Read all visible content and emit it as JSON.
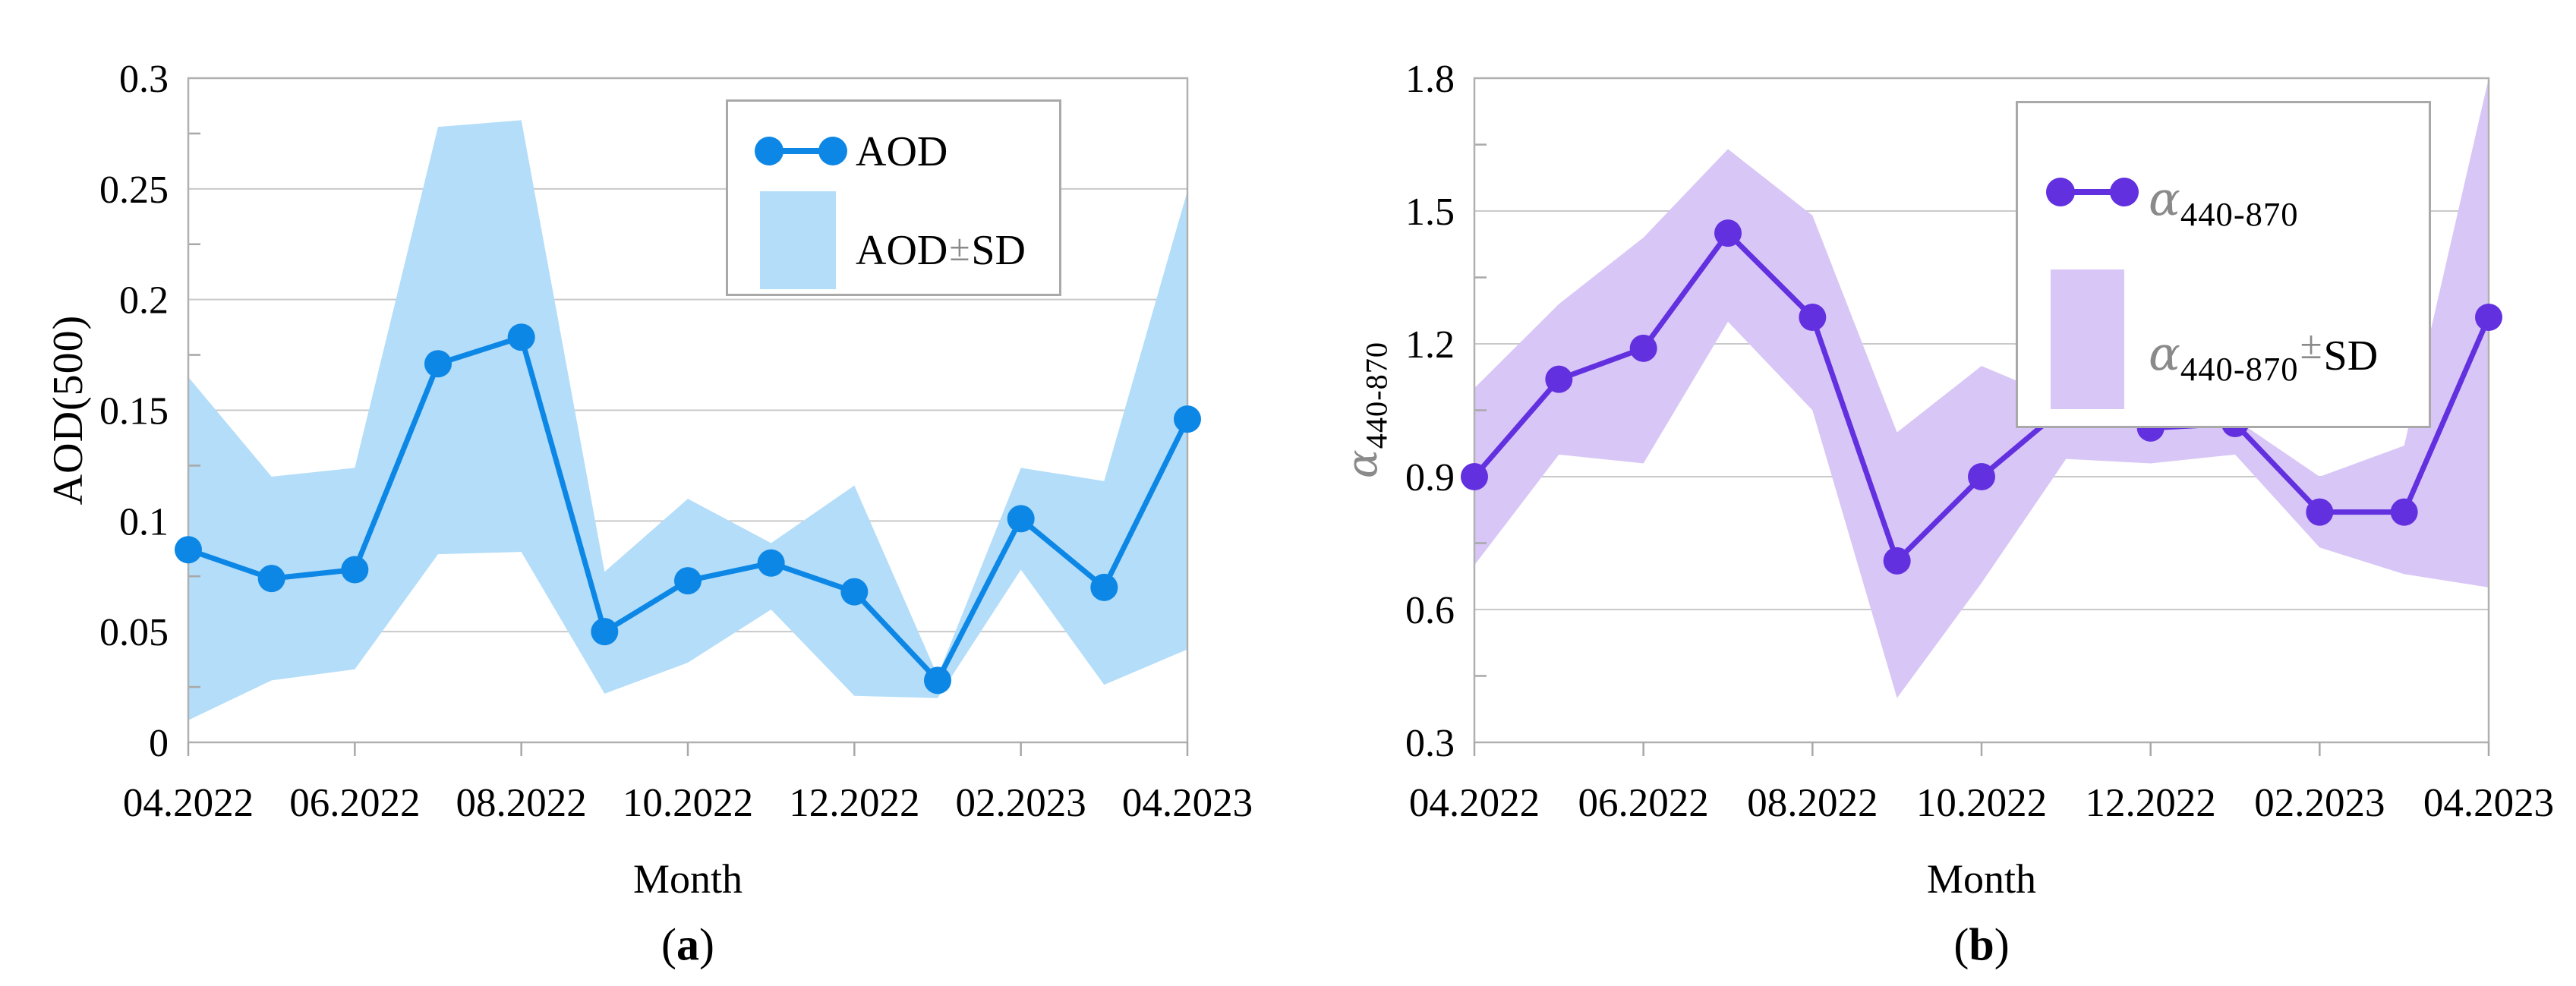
{
  "style": {
    "background": "#ffffff",
    "text_color": "#000000",
    "grid_color": "#c9c9c9",
    "axis_color": "#b0b0b0",
    "tick_color": "#a8a8a8",
    "muted_color": "#8a8a8a",
    "panel_a_line": "#0d87e6",
    "panel_a_band": "#b3ddf9",
    "panel_b_line": "#6330e0",
    "panel_b_band": "#d8c7f6"
  },
  "chart_data": [
    {
      "type": "line",
      "panel": "a",
      "caption": {
        "open": "(",
        "letter": "a",
        "close": ")"
      },
      "xlabel": "Month",
      "ylabel": "AOD(500)",
      "x": [
        "04.2022",
        "05.2022",
        "06.2022",
        "07.2022",
        "08.2022",
        "09.2022",
        "10.2022",
        "11.2022",
        "12.2022",
        "01.2023",
        "02.2023",
        "03.2023",
        "04.2023"
      ],
      "x_tick_labels": [
        "04.2022",
        "06.2022",
        "08.2022",
        "10.2022",
        "12.2022",
        "02.2023",
        "04.2023"
      ],
      "ylim": [
        0,
        0.3
      ],
      "yticks": [
        0,
        0.05,
        0.1,
        0.15,
        0.2,
        0.25,
        0.3
      ],
      "ytick_labels": [
        "0",
        "0.05",
        "0.1",
        "0.15",
        "0.2",
        "0.25",
        "0.3"
      ],
      "grid": "horizontal",
      "legend_position": "top-center",
      "series": [
        {
          "name": "AOD",
          "values": [
            0.087,
            0.074,
            0.078,
            0.171,
            0.183,
            0.05,
            0.073,
            0.081,
            0.068,
            0.028,
            0.101,
            0.07,
            0.146
          ]
        },
        {
          "name": "AOD+SD (upper)",
          "values": [
            0.165,
            0.12,
            0.124,
            0.278,
            0.281,
            0.077,
            0.11,
            0.09,
            0.116,
            0.03,
            0.124,
            0.118,
            0.249
          ]
        },
        {
          "name": "AOD-SD (lower)",
          "values": [
            0.01,
            0.028,
            0.033,
            0.085,
            0.086,
            0.022,
            0.036,
            0.06,
            0.021,
            0.02,
            0.078,
            0.026,
            0.042
          ]
        }
      ],
      "legend": {
        "series_label": "AOD",
        "band_label": "AOD",
        "band_pm": "±",
        "band_sd": "SD"
      },
      "colors": {
        "line": "#0d87e6",
        "band": "#b3ddf9"
      }
    },
    {
      "type": "line",
      "panel": "b",
      "caption": {
        "open": "(",
        "letter": "b",
        "close": ")"
      },
      "xlabel": "Month",
      "ylabel_alpha": "α",
      "ylabel_sub": "440-870",
      "x": [
        "04.2022",
        "05.2022",
        "06.2022",
        "07.2022",
        "08.2022",
        "09.2022",
        "10.2022",
        "11.2022",
        "12.2022",
        "01.2023",
        "02.2023",
        "03.2023",
        "04.2023"
      ],
      "x_tick_labels": [
        "04.2022",
        "06.2022",
        "08.2022",
        "10.2022",
        "12.2022",
        "02.2023",
        "04.2023"
      ],
      "ylim": [
        0.3,
        1.8
      ],
      "yticks": [
        0.3,
        0.6,
        0.9,
        1.2,
        1.5,
        1.8
      ],
      "ytick_labels": [
        "0.3",
        "0.6",
        "0.9",
        "1.2",
        "1.5",
        "1.8"
      ],
      "grid": "horizontal",
      "legend_position": "top-center",
      "series": [
        {
          "name": "alpha 440-870",
          "values": [
            0.9,
            1.12,
            1.19,
            1.45,
            1.26,
            0.71,
            0.9,
            1.06,
            1.01,
            1.02,
            0.82,
            0.82,
            1.26
          ]
        },
        {
          "name": "alpha 440-870 +SD (upper)",
          "values": [
            1.1,
            1.29,
            1.44,
            1.64,
            1.49,
            1.0,
            1.15,
            1.07,
            1.05,
            1.03,
            0.9,
            0.97,
            1.8
          ]
        },
        {
          "name": "alpha 440-870 -SD (lower)",
          "values": [
            0.7,
            0.95,
            0.93,
            1.25,
            1.05,
            0.4,
            0.66,
            0.94,
            0.93,
            0.95,
            0.74,
            0.68,
            0.65
          ]
        }
      ],
      "legend": {
        "alpha": "α",
        "sub": "440-870",
        "pm": "±",
        "sd": "SD"
      },
      "colors": {
        "line": "#6330e0",
        "band": "#d8c7f6"
      }
    }
  ]
}
